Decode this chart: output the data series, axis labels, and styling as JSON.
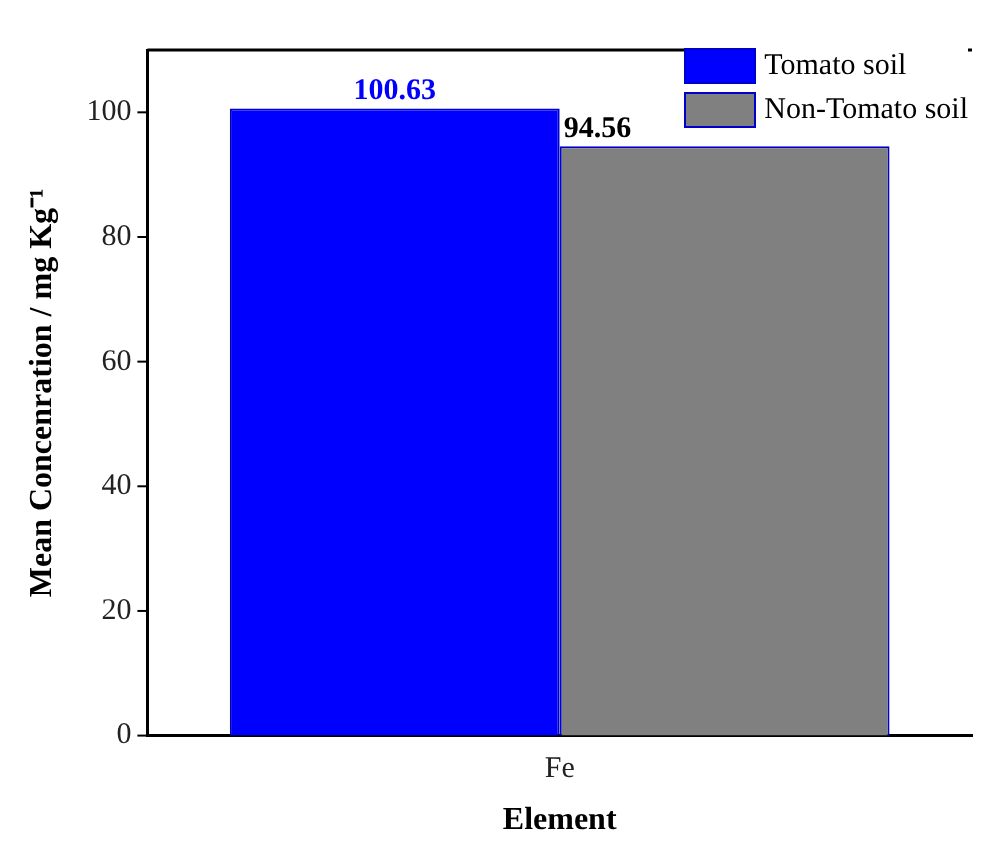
{
  "chart_data": {
    "type": "bar",
    "xlabel": "Element",
    "ylabel": "Mean Concenration / mg Kg⁻¹",
    "categories": [
      "Fe"
    ],
    "series": [
      {
        "name": "Tomato soil",
        "color": "#0000ff",
        "values": [
          100.63
        ]
      },
      {
        "name": "Non-Tomato soil",
        "color": "#808080",
        "values": [
          94.56
        ]
      }
    ],
    "ylim": [
      0,
      110
    ],
    "yticks": [
      0,
      20,
      40,
      60,
      80,
      100
    ],
    "data_labels": true,
    "legend": "top right",
    "grid": false
  }
}
